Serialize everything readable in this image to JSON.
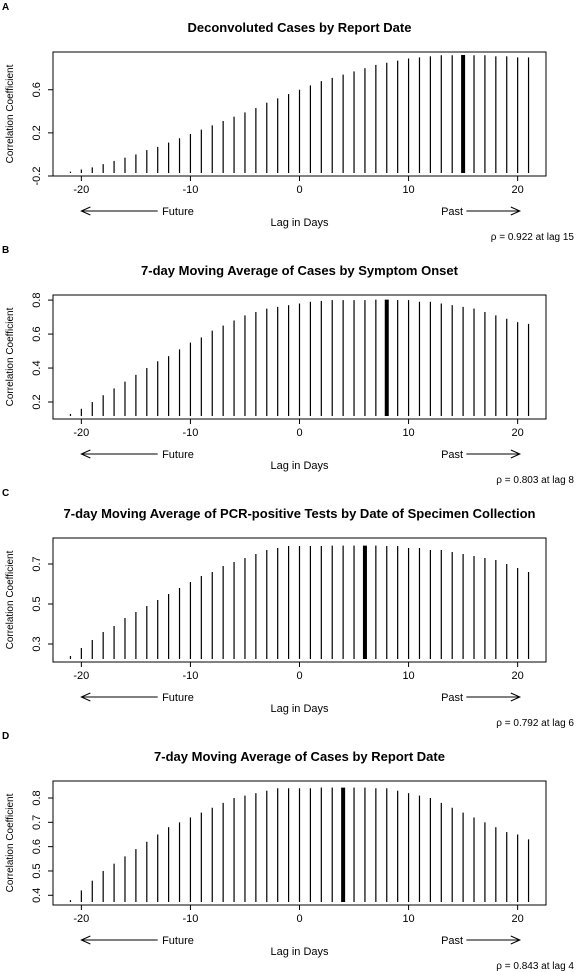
{
  "chart_data": [
    {
      "panel_label": "A",
      "type": "bar",
      "title": "Deconvoluted Cases by Report Date",
      "xlabel": "Lag in Days",
      "ylabel": "Correlation Coefficient",
      "x_ticks": [
        -20,
        -10,
        0,
        10,
        20
      ],
      "y_ticks": [
        "-0.2",
        "0.2",
        "0.6"
      ],
      "ylim": [
        -0.2,
        0.95
      ],
      "x": [
        -21,
        -20,
        -19,
        -18,
        -17,
        -16,
        -15,
        -14,
        -13,
        -12,
        -11,
        -10,
        -9,
        -8,
        -7,
        -6,
        -5,
        -4,
        -3,
        -2,
        -1,
        0,
        1,
        2,
        3,
        4,
        5,
        6,
        7,
        8,
        9,
        10,
        11,
        12,
        13,
        14,
        15,
        16,
        17,
        18,
        19,
        20,
        21
      ],
      "values": [
        -0.16,
        -0.14,
        -0.12,
        -0.09,
        -0.06,
        -0.03,
        0.0,
        0.04,
        0.07,
        0.11,
        0.15,
        0.19,
        0.23,
        0.27,
        0.31,
        0.35,
        0.39,
        0.43,
        0.48,
        0.52,
        0.56,
        0.6,
        0.64,
        0.68,
        0.71,
        0.74,
        0.77,
        0.8,
        0.83,
        0.85,
        0.87,
        0.89,
        0.9,
        0.91,
        0.92,
        0.92,
        0.922,
        0.92,
        0.92,
        0.91,
        0.91,
        0.9,
        0.9
      ],
      "highlight_lag": 15,
      "future_label": "Future",
      "past_label": "Past",
      "annotation": "ρ = 0.922 at lag 15"
    },
    {
      "panel_label": "B",
      "type": "bar",
      "title": "7-day Moving Average of Cases by Symptom Onset",
      "xlabel": "Lag in Days",
      "ylabel": "Correlation Coefficient",
      "x_ticks": [
        -20,
        -10,
        0,
        10,
        20
      ],
      "y_ticks": [
        "0.2",
        "0.4",
        "0.6",
        "0.8"
      ],
      "ylim": [
        0.1,
        0.83
      ],
      "x": [
        -21,
        -20,
        -19,
        -18,
        -17,
        -16,
        -15,
        -14,
        -13,
        -12,
        -11,
        -10,
        -9,
        -8,
        -7,
        -6,
        -5,
        -4,
        -3,
        -2,
        -1,
        0,
        1,
        2,
        3,
        4,
        5,
        6,
        7,
        8,
        9,
        10,
        11,
        12,
        13,
        14,
        15,
        16,
        17,
        18,
        19,
        20,
        21
      ],
      "values": [
        0.13,
        0.16,
        0.2,
        0.24,
        0.28,
        0.32,
        0.36,
        0.4,
        0.44,
        0.47,
        0.51,
        0.55,
        0.58,
        0.62,
        0.65,
        0.68,
        0.71,
        0.73,
        0.75,
        0.76,
        0.77,
        0.78,
        0.79,
        0.795,
        0.8,
        0.8,
        0.8,
        0.8,
        0.803,
        0.803,
        0.8,
        0.8,
        0.79,
        0.79,
        0.78,
        0.77,
        0.76,
        0.75,
        0.73,
        0.71,
        0.69,
        0.67,
        0.66
      ],
      "highlight_lag": 8,
      "future_label": "Future",
      "past_label": "Past",
      "annotation": "ρ = 0.803 at lag 8"
    },
    {
      "panel_label": "C",
      "type": "bar",
      "title": "7-day Moving Average of PCR-positive Tests by Date of Specimen Collection",
      "xlabel": "Lag in Days",
      "ylabel": "Correlation Coefficient",
      "x_ticks": [
        -20,
        -10,
        0,
        10,
        20
      ],
      "y_ticks": [
        "0.3",
        "0.5",
        "0.7"
      ],
      "ylim": [
        0.21,
        0.83
      ],
      "x": [
        -21,
        -20,
        -19,
        -18,
        -17,
        -16,
        -15,
        -14,
        -13,
        -12,
        -11,
        -10,
        -9,
        -8,
        -7,
        -6,
        -5,
        -4,
        -3,
        -2,
        -1,
        0,
        1,
        2,
        3,
        4,
        5,
        6,
        7,
        8,
        9,
        10,
        11,
        12,
        13,
        14,
        15,
        16,
        17,
        18,
        19,
        20,
        21
      ],
      "values": [
        0.24,
        0.28,
        0.32,
        0.36,
        0.39,
        0.43,
        0.46,
        0.49,
        0.52,
        0.55,
        0.58,
        0.61,
        0.64,
        0.66,
        0.69,
        0.71,
        0.73,
        0.75,
        0.77,
        0.78,
        0.79,
        0.79,
        0.79,
        0.79,
        0.792,
        0.792,
        0.792,
        0.792,
        0.792,
        0.79,
        0.79,
        0.78,
        0.78,
        0.77,
        0.77,
        0.76,
        0.75,
        0.74,
        0.73,
        0.72,
        0.7,
        0.68,
        0.66
      ],
      "highlight_lag": 6,
      "future_label": "Future",
      "past_label": "Past",
      "annotation": "ρ = 0.792 at lag 6"
    },
    {
      "panel_label": "D",
      "type": "bar",
      "title": "7-day Moving Average of Cases by Report Date",
      "xlabel": "Lag in Days",
      "ylabel": "Correlation Coefficient",
      "x_ticks": [
        -20,
        -10,
        0,
        10,
        20
      ],
      "y_ticks": [
        "0.4",
        "0.5",
        "0.6",
        "0.7",
        "0.8"
      ],
      "ylim": [
        0.36,
        0.87
      ],
      "x": [
        -21,
        -20,
        -19,
        -18,
        -17,
        -16,
        -15,
        -14,
        -13,
        -12,
        -11,
        -10,
        -9,
        -8,
        -7,
        -6,
        -5,
        -4,
        -3,
        -2,
        -1,
        0,
        1,
        2,
        3,
        4,
        5,
        6,
        7,
        8,
        9,
        10,
        11,
        12,
        13,
        14,
        15,
        16,
        17,
        18,
        19,
        20,
        21
      ],
      "values": [
        0.38,
        0.42,
        0.46,
        0.5,
        0.53,
        0.56,
        0.59,
        0.62,
        0.65,
        0.68,
        0.7,
        0.72,
        0.74,
        0.76,
        0.78,
        0.8,
        0.81,
        0.82,
        0.83,
        0.84,
        0.84,
        0.84,
        0.84,
        0.843,
        0.843,
        0.843,
        0.843,
        0.843,
        0.84,
        0.84,
        0.83,
        0.82,
        0.81,
        0.8,
        0.78,
        0.76,
        0.74,
        0.72,
        0.7,
        0.68,
        0.66,
        0.65,
        0.63
      ],
      "highlight_lag": 4,
      "future_label": "Future",
      "past_label": "Past",
      "annotation": "ρ = 0.843 at lag 4"
    }
  ]
}
